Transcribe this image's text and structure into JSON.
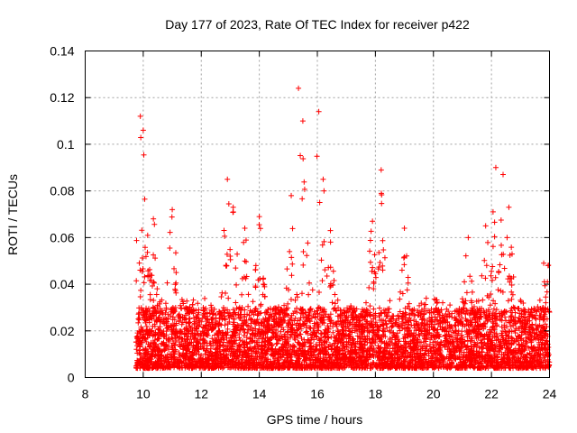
{
  "chart_data": {
    "type": "scatter",
    "title": "Day 177 of 2023, Rate Of TEC Index for receiver p422",
    "xlabel": "GPS time / hours",
    "ylabel": "ROTI / TECUs",
    "xlim": [
      8,
      24
    ],
    "ylim": [
      0,
      0.14
    ],
    "xticks": [
      8,
      10,
      12,
      14,
      16,
      18,
      20,
      22,
      24
    ],
    "xtick_labels": [
      "8",
      "10",
      "12",
      "14",
      "16",
      "18",
      "20",
      "22",
      "24"
    ],
    "yticks": [
      0,
      0.02,
      0.04,
      0.06,
      0.08,
      0.1,
      0.12,
      0.14
    ],
    "ytick_labels": [
      "0",
      "0.02",
      "0.04",
      "0.06",
      "0.08",
      "0.1",
      "0.12",
      "0.14"
    ],
    "grid": true,
    "marker": "plus",
    "color": "#ff0000",
    "data_range_hours": [
      9.75,
      24
    ],
    "background_level": [
      0.004,
      0.03
    ],
    "peaks": [
      {
        "x": 9.9,
        "y": 0.112
      },
      {
        "x": 10.0,
        "y": 0.106
      },
      {
        "x": 10.35,
        "y": 0.068
      },
      {
        "x": 11.0,
        "y": 0.072
      },
      {
        "x": 12.9,
        "y": 0.085
      },
      {
        "x": 13.1,
        "y": 0.073
      },
      {
        "x": 13.5,
        "y": 0.064
      },
      {
        "x": 14.0,
        "y": 0.069
      },
      {
        "x": 15.1,
        "y": 0.078
      },
      {
        "x": 15.35,
        "y": 0.124
      },
      {
        "x": 15.5,
        "y": 0.11
      },
      {
        "x": 16.05,
        "y": 0.114
      },
      {
        "x": 16.2,
        "y": 0.085
      },
      {
        "x": 16.45,
        "y": 0.063
      },
      {
        "x": 17.9,
        "y": 0.067
      },
      {
        "x": 18.2,
        "y": 0.089
      },
      {
        "x": 19.0,
        "y": 0.064
      },
      {
        "x": 21.2,
        "y": 0.06
      },
      {
        "x": 21.8,
        "y": 0.065
      },
      {
        "x": 22.15,
        "y": 0.09
      },
      {
        "x": 22.4,
        "y": 0.087
      },
      {
        "x": 22.6,
        "y": 0.073
      },
      {
        "x": 23.8,
        "y": 0.049
      },
      {
        "x": 23.95,
        "y": 0.048
      }
    ]
  }
}
